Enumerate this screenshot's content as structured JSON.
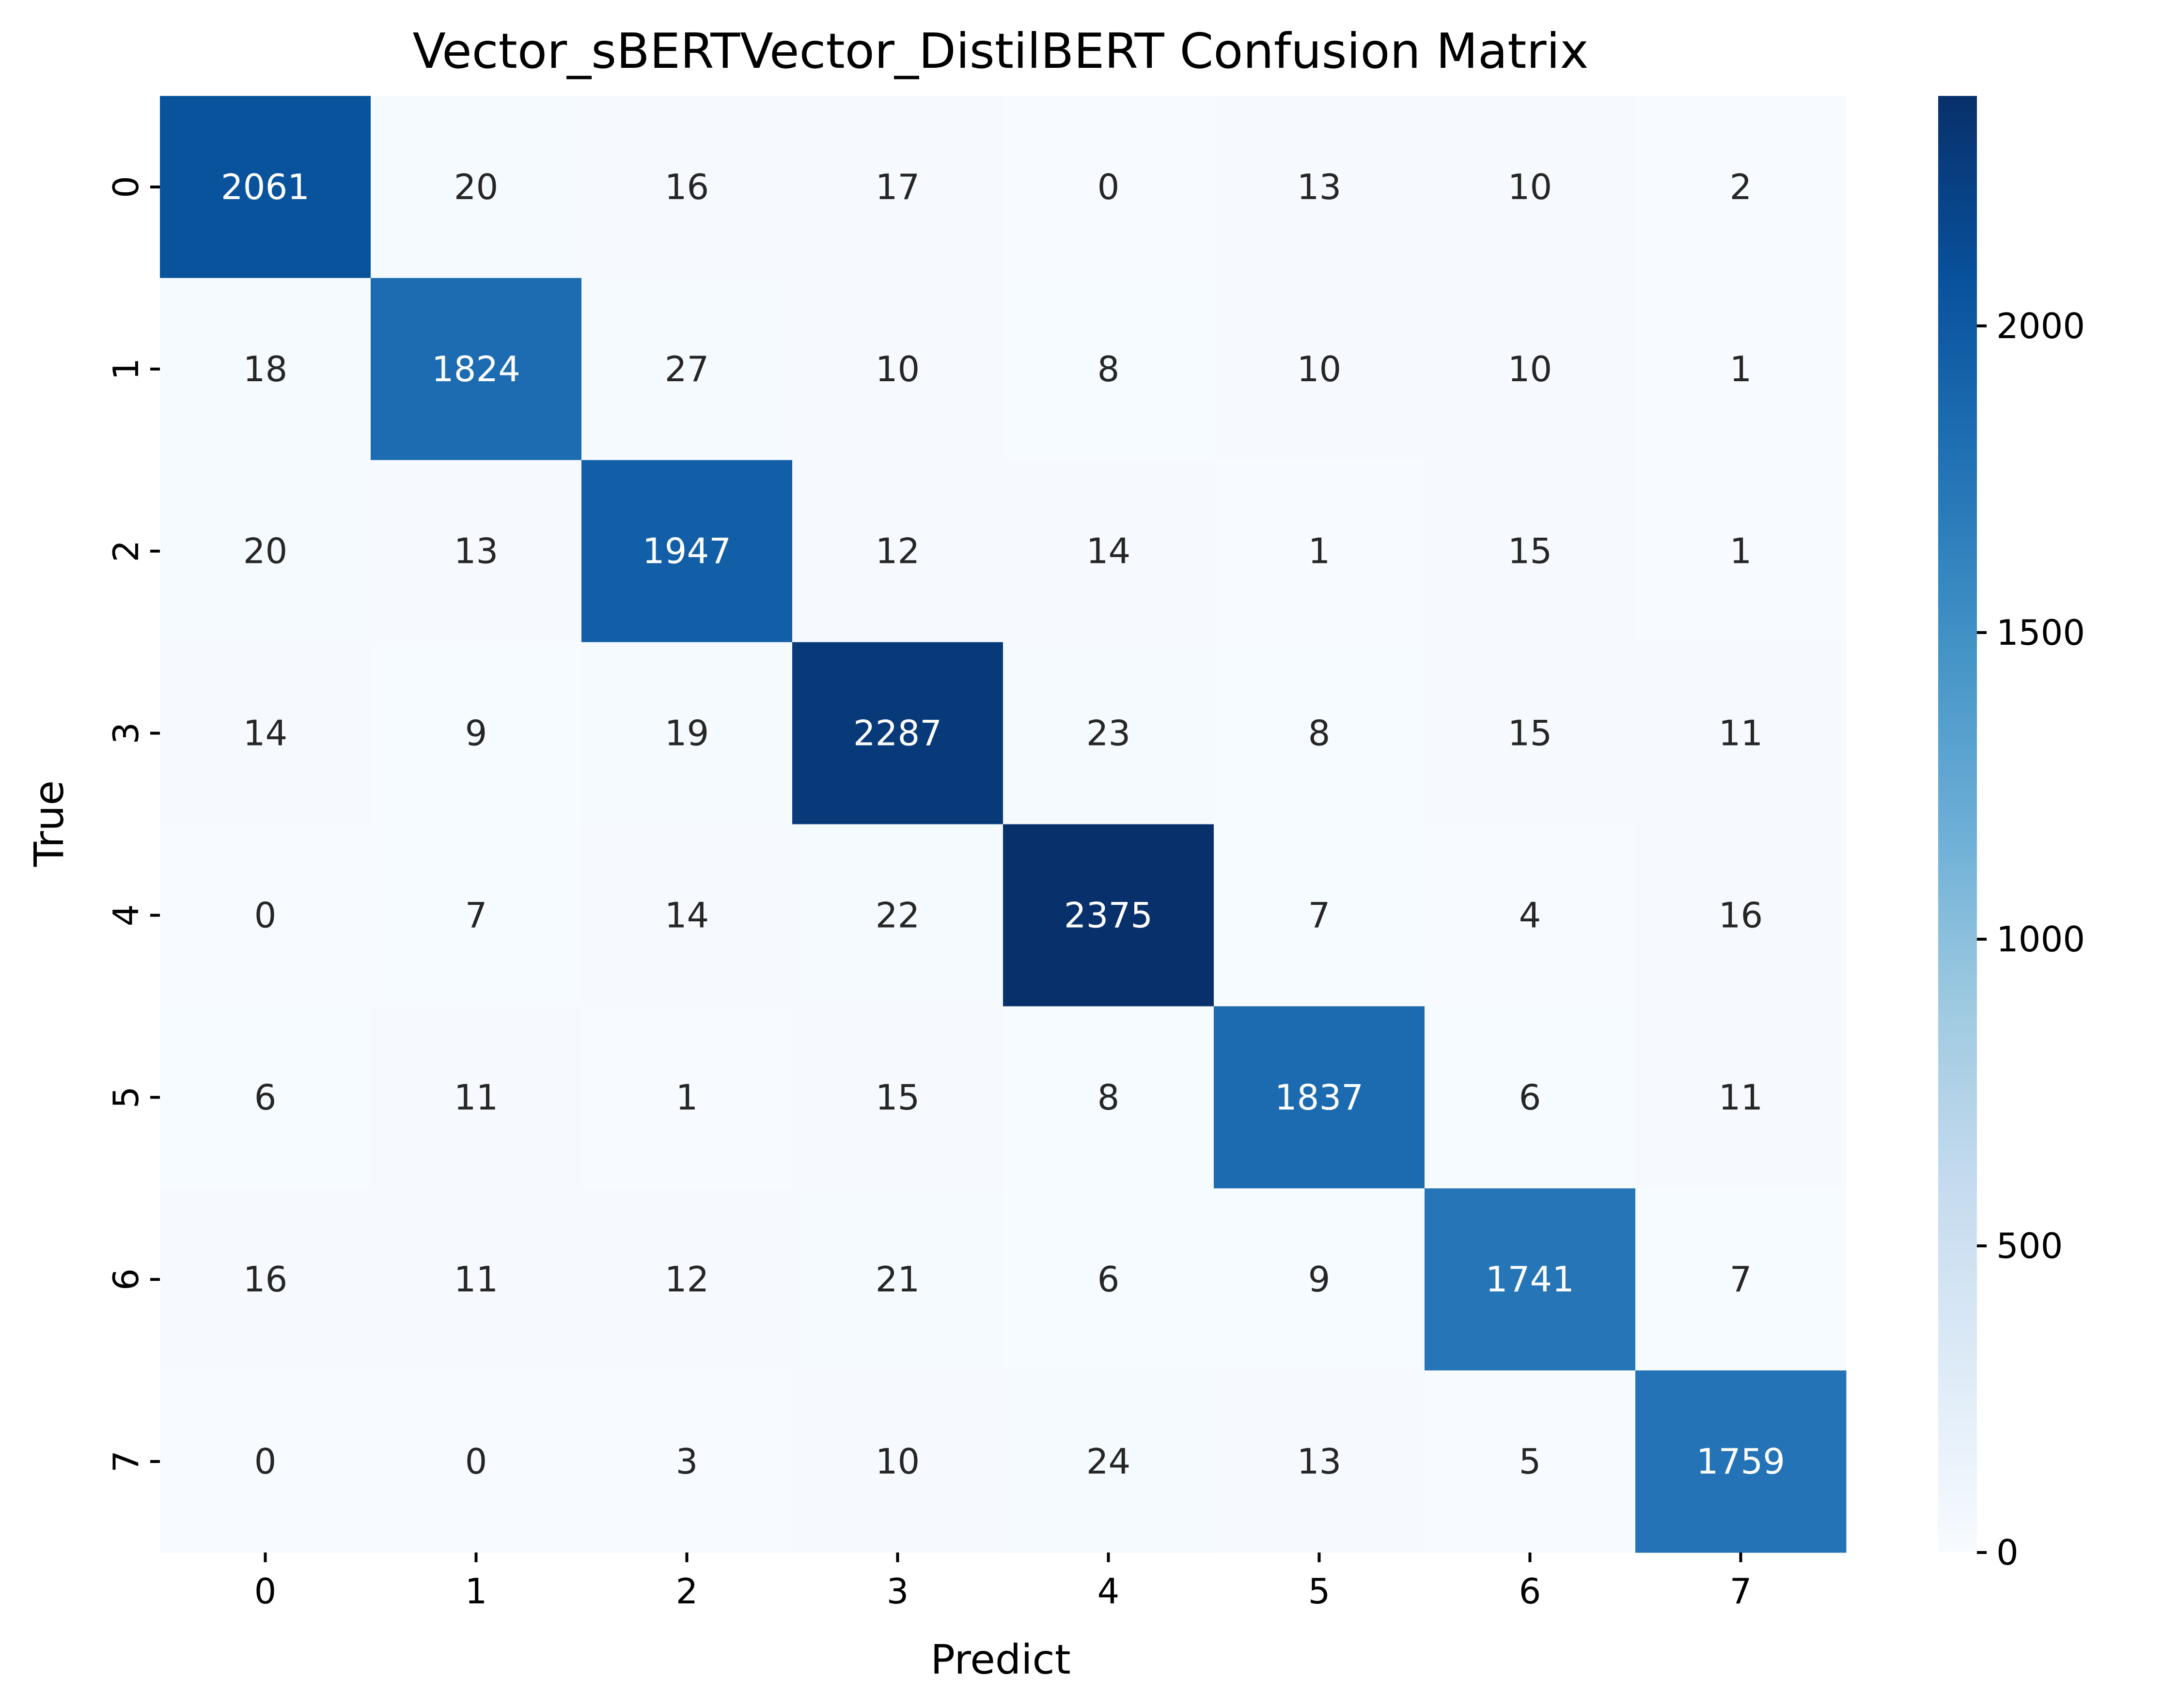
{
  "chart_data": {
    "type": "heatmap",
    "title": "Vector_sBERTVector_DistilBERT Confusion Matrix",
    "xlabel": "Predict",
    "ylabel": "True",
    "x_categories": [
      "0",
      "1",
      "2",
      "3",
      "4",
      "5",
      "6",
      "7"
    ],
    "y_categories": [
      "0",
      "1",
      "2",
      "3",
      "4",
      "5",
      "6",
      "7"
    ],
    "values": [
      [
        2061,
        20,
        16,
        17,
        0,
        13,
        10,
        2
      ],
      [
        18,
        1824,
        27,
        10,
        8,
        10,
        10,
        1
      ],
      [
        20,
        13,
        1947,
        12,
        14,
        1,
        15,
        1
      ],
      [
        14,
        9,
        19,
        2287,
        23,
        8,
        15,
        11
      ],
      [
        0,
        7,
        14,
        22,
        2375,
        7,
        4,
        16
      ],
      [
        6,
        11,
        1,
        15,
        8,
        1837,
        6,
        11
      ],
      [
        16,
        11,
        12,
        21,
        6,
        9,
        1741,
        7
      ],
      [
        0,
        0,
        3,
        10,
        24,
        13,
        5,
        1759
      ]
    ],
    "colormap": "Blues",
    "colormap_stops": [
      "#f7fbff",
      "#deebf7",
      "#c6dbef",
      "#9ecae1",
      "#6baed6",
      "#4292c6",
      "#2171b5",
      "#08519c",
      "#08306b"
    ],
    "colorbar": {
      "min": 0,
      "max": 2375,
      "ticks": [
        0,
        500,
        1000,
        1500,
        2000
      ],
      "tick_labels": [
        "0",
        "500",
        "1000",
        "1500",
        "2000"
      ]
    },
    "annotation_text_colors": {
      "light": "#ffffff",
      "dark": "#262626"
    }
  }
}
